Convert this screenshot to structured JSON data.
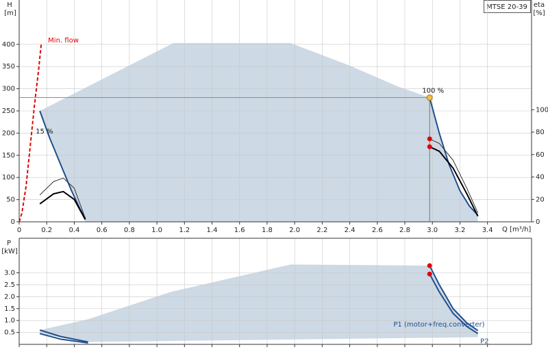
{
  "chart_data": [
    {
      "type": "line",
      "label": "MTSE 20-39",
      "xlabel": "Q [m³/h]",
      "ylabel": "H",
      "yunit": "[m]",
      "y2label": "eta",
      "y2unit": "[%]",
      "xlim": [
        0,
        3.72
      ],
      "xticks": [
        0,
        0.2,
        0.4,
        0.6,
        0.8,
        {
          "value": 1,
          "label": "1.0"
        },
        1.2,
        1.4,
        1.6,
        1.8,
        {
          "value": 2,
          "label": "2.0"
        },
        2.2,
        2.4,
        2.6,
        2.8,
        {
          "value": 3,
          "label": "3.0"
        },
        3.2,
        3.4
      ],
      "ylim": [
        0,
        500
      ],
      "yticks": [
        0,
        50,
        100,
        150,
        200,
        250,
        300,
        350,
        400
      ],
      "y2lim": [
        0,
        198
      ],
      "y2ticks": [
        0,
        20,
        40,
        60,
        80,
        100
      ],
      "grid": true,
      "area": {
        "color": "#cdd9e4",
        "x": [
          0.15,
          1.12,
          1.97,
          2.4,
          2.75,
          2.98,
          3.05,
          3.12,
          3.2,
          3.27,
          3.33,
          3.33,
          0.48,
          0.44,
          0.38,
          0.3,
          0.22
        ],
        "values": [
          250,
          403,
          403,
          352,
          305,
          280,
          200,
          130,
          70,
          35,
          15,
          0,
          0,
          30,
          70,
          130,
          190
        ]
      },
      "duty_point": {
        "x": 2.98,
        "y": 280,
        "color": "#f5c242",
        "line_color": "#f06060"
      },
      "series": [
        {
          "name": "Min. flow",
          "color": "#e00000",
          "dash": true,
          "width": 2,
          "x": [
            0,
            0.02,
            0.05,
            0.08,
            0.11,
            0.14,
            0.16
          ],
          "values": [
            0,
            20,
            80,
            170,
            260,
            340,
            400
          ]
        },
        {
          "name": "100 %",
          "color": "#1f4e8c",
          "width": 2,
          "x": [
            2.98,
            3.05,
            3.12,
            3.2,
            3.27,
            3.33
          ],
          "values": [
            280,
            200,
            130,
            70,
            35,
            15
          ]
        },
        {
          "name": "15 %",
          "color": "#1f4e8c",
          "width": 2,
          "x": [
            0.15,
            0.22,
            0.3,
            0.38,
            0.44,
            0.48
          ],
          "values": [
            250,
            190,
            130,
            70,
            30,
            8
          ]
        },
        {
          "axis": "y2",
          "color": "#333333",
          "width": 1,
          "start_marker": "#e00000",
          "x": [
            2.98,
            3.05,
            3.15,
            3.25,
            3.33
          ],
          "values": [
            74,
            70,
            55,
            30,
            8
          ]
        },
        {
          "axis": "y2",
          "color": "#000000",
          "width": 2,
          "start_marker": "#e00000",
          "x": [
            2.98,
            3.05,
            3.15,
            3.25,
            3.33
          ],
          "values": [
            67,
            63,
            48,
            25,
            5
          ]
        },
        {
          "axis": "y2",
          "color": "#333333",
          "width": 1,
          "x": [
            0.15,
            0.25,
            0.32,
            0.4,
            0.48
          ],
          "values": [
            24,
            36,
            39,
            30,
            3
          ]
        },
        {
          "axis": "y2",
          "color": "#000000",
          "width": 2,
          "x": [
            0.15,
            0.25,
            0.32,
            0.4,
            0.48
          ],
          "values": [
            16,
            25,
            27,
            20,
            2
          ]
        }
      ]
    },
    {
      "type": "line",
      "ylabel": "P",
      "yunit": "[kW]",
      "xlim": [
        0,
        3.72
      ],
      "xticks": [
        0,
        0.2,
        0.4,
        0.6,
        0.8,
        1,
        1.2,
        1.4,
        1.6,
        1.8,
        2,
        2.2,
        2.4,
        2.6,
        2.8,
        3,
        3.2,
        3.4
      ],
      "ylim": [
        0,
        4.45
      ],
      "yticks": [
        0.5,
        {
          "value": 1,
          "label": "1.0"
        },
        1.5,
        {
          "value": 2,
          "label": "2.0"
        },
        2.5,
        {
          "value": 3,
          "label": "3.0"
        }
      ],
      "grid": true,
      "area": {
        "color": "#cdd9e4",
        "x": [
          0.15,
          0.5,
          1.1,
          1.97,
          2.98,
          3.05,
          3.15,
          3.25,
          3.33,
          3.33,
          0.5,
          0.15
        ],
        "values": [
          0.6,
          1.05,
          2.2,
          3.35,
          3.3,
          2.5,
          1.5,
          0.9,
          0.6,
          0.3,
          0.1,
          0.45
        ]
      },
      "series": [
        {
          "name": "P1 (motor+freq.converter)",
          "color": "#1f4e8c",
          "width": 2,
          "start_marker": "#e00000",
          "x": [
            2.98,
            3.05,
            3.15,
            3.25,
            3.33
          ],
          "values": [
            3.3,
            2.5,
            1.5,
            0.9,
            0.58
          ]
        },
        {
          "name": "P2",
          "color": "#1f4e8c",
          "width": 2,
          "start_marker": "#e00000",
          "x": [
            2.98,
            3.05,
            3.15,
            3.25,
            3.33
          ],
          "values": [
            2.95,
            2.2,
            1.3,
            0.75,
            0.45
          ]
        },
        {
          "color": "#1f4e8c",
          "width": 2,
          "x": [
            0.15,
            0.3,
            0.5
          ],
          "values": [
            0.6,
            0.33,
            0.1
          ]
        },
        {
          "color": "#1f4e8c",
          "width": 2,
          "x": [
            0.15,
            0.3,
            0.5
          ],
          "values": [
            0.45,
            0.22,
            0.06
          ]
        }
      ]
    }
  ]
}
